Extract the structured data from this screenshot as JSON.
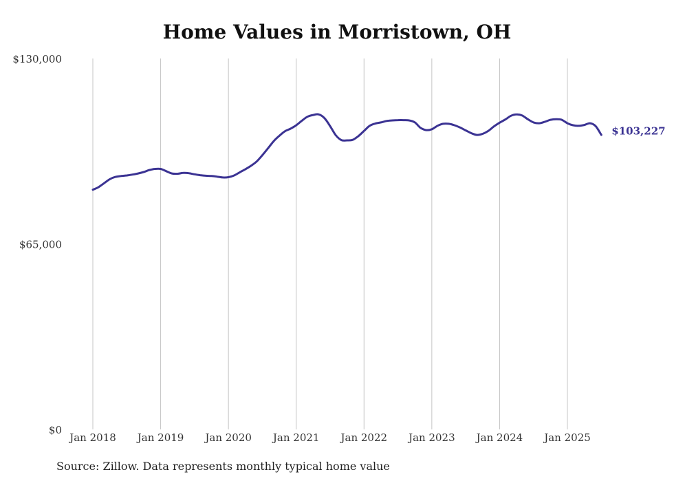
{
  "chart_data": {
    "type": "line",
    "title": "Home Values in Morristown, OH",
    "ylim": [
      0,
      130000
    ],
    "y_ticks": [
      {
        "value": 0,
        "label": "$0"
      },
      {
        "value": 65000,
        "label": "$65,000"
      },
      {
        "value": 130000,
        "label": "$130,000"
      }
    ],
    "x_ticks": [
      {
        "value": "2018-01",
        "label": "Jan 2018"
      },
      {
        "value": "2019-01",
        "label": "Jan 2019"
      },
      {
        "value": "2020-01",
        "label": "Jan 2020"
      },
      {
        "value": "2021-01",
        "label": "Jan 2021"
      },
      {
        "value": "2022-01",
        "label": "Jan 2022"
      },
      {
        "value": "2023-01",
        "label": "Jan 2023"
      },
      {
        "value": "2024-01",
        "label": "Jan 2024"
      },
      {
        "value": "2025-01",
        "label": "Jan 2025"
      }
    ],
    "grid": "vertical",
    "line_color": "#3b3393",
    "end_label": "$103,227",
    "series": [
      {
        "x": [
          "2018-01",
          "2018-02",
          "2018-03",
          "2018-04",
          "2018-05",
          "2018-06",
          "2018-07",
          "2018-08",
          "2018-09",
          "2018-10",
          "2018-11",
          "2018-12",
          "2019-01",
          "2019-02",
          "2019-03",
          "2019-04",
          "2019-05",
          "2019-06",
          "2019-07",
          "2019-08",
          "2019-09",
          "2019-10",
          "2019-11",
          "2019-12",
          "2020-01",
          "2020-02",
          "2020-03",
          "2020-04",
          "2020-05",
          "2020-06",
          "2020-07",
          "2020-08",
          "2020-09",
          "2020-10",
          "2020-11",
          "2020-12",
          "2021-01",
          "2021-02",
          "2021-03",
          "2021-04",
          "2021-05",
          "2021-06",
          "2021-07",
          "2021-08",
          "2021-09",
          "2021-10",
          "2021-11",
          "2021-12",
          "2022-01",
          "2022-02",
          "2022-03",
          "2022-04",
          "2022-05",
          "2022-06",
          "2022-07",
          "2022-08",
          "2022-09",
          "2022-10",
          "2022-11",
          "2022-12",
          "2023-01",
          "2023-02",
          "2023-03",
          "2023-04",
          "2023-05",
          "2023-06",
          "2023-07",
          "2023-08",
          "2023-09",
          "2023-10",
          "2023-11",
          "2023-12",
          "2024-01",
          "2024-02",
          "2024-03",
          "2024-04",
          "2024-05",
          "2024-06",
          "2024-07",
          "2024-08",
          "2024-09",
          "2024-10",
          "2024-11",
          "2024-12",
          "2025-01",
          "2025-02",
          "2025-03",
          "2025-04",
          "2025-05",
          "2025-06",
          "2025-07"
        ],
        "values": [
          84000,
          84900,
          86300,
          87700,
          88500,
          88800,
          89000,
          89300,
          89700,
          90200,
          90900,
          91300,
          91300,
          90500,
          89700,
          89600,
          89900,
          89800,
          89400,
          89100,
          88900,
          88800,
          88600,
          88300,
          88400,
          89000,
          90100,
          91200,
          92400,
          93900,
          96100,
          98500,
          101000,
          102900,
          104500,
          105400,
          106600,
          108200,
          109600,
          110200,
          110400,
          109100,
          106300,
          103100,
          101400,
          101300,
          101500,
          102800,
          104600,
          106400,
          107200,
          107600,
          108100,
          108300,
          108400,
          108400,
          108300,
          107600,
          105700,
          104900,
          105200,
          106400,
          107100,
          107100,
          106600,
          105800,
          104800,
          103800,
          103200,
          103600,
          104600,
          106200,
          107500,
          108600,
          109900,
          110400,
          110000,
          108700,
          107600,
          107300,
          107800,
          108500,
          108700,
          108500,
          107300,
          106600,
          106400,
          106700,
          107300,
          106300,
          103227
        ]
      }
    ]
  },
  "footer": {
    "source": "Source: Zillow. Data represents monthly typical home value"
  }
}
